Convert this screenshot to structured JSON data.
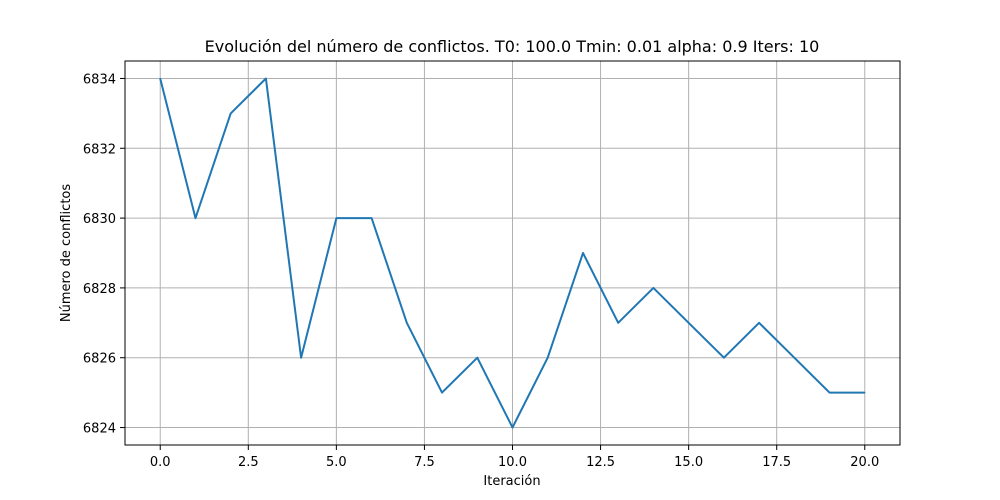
{
  "chart_data": {
    "type": "line",
    "title": "Evolución del número de conflictos. T0: 100.0 Tmin: 0.01 alpha: 0.9 Iters: 10",
    "xlabel": "Iteración",
    "ylabel": "Número de conflictos",
    "xlim": [
      -1,
      21
    ],
    "ylim": [
      6823.5,
      6834.5
    ],
    "xticks": [
      0.0,
      2.5,
      5.0,
      7.5,
      10.0,
      12.5,
      15.0,
      17.5,
      20.0
    ],
    "xtick_labels": [
      "0.0",
      "2.5",
      "5.0",
      "7.5",
      "10.0",
      "12.5",
      "15.0",
      "17.5",
      "20.0"
    ],
    "yticks": [
      6824,
      6826,
      6828,
      6830,
      6832,
      6834
    ],
    "ytick_labels": [
      "6824",
      "6826",
      "6828",
      "6830",
      "6832",
      "6834"
    ],
    "grid": true,
    "series": [
      {
        "color": "#1f77b4",
        "x": [
          0,
          1,
          2,
          3,
          4,
          5,
          6,
          7,
          8,
          9,
          10,
          11,
          12,
          13,
          14,
          15,
          16,
          17,
          18,
          19,
          20
        ],
        "y": [
          6834,
          6830,
          6833,
          6834,
          6826,
          6830,
          6830,
          6827,
          6825,
          6826,
          6824,
          6826,
          6829,
          6827,
          6828,
          6827,
          6826,
          6827,
          6826,
          6825,
          6825
        ]
      }
    ]
  }
}
